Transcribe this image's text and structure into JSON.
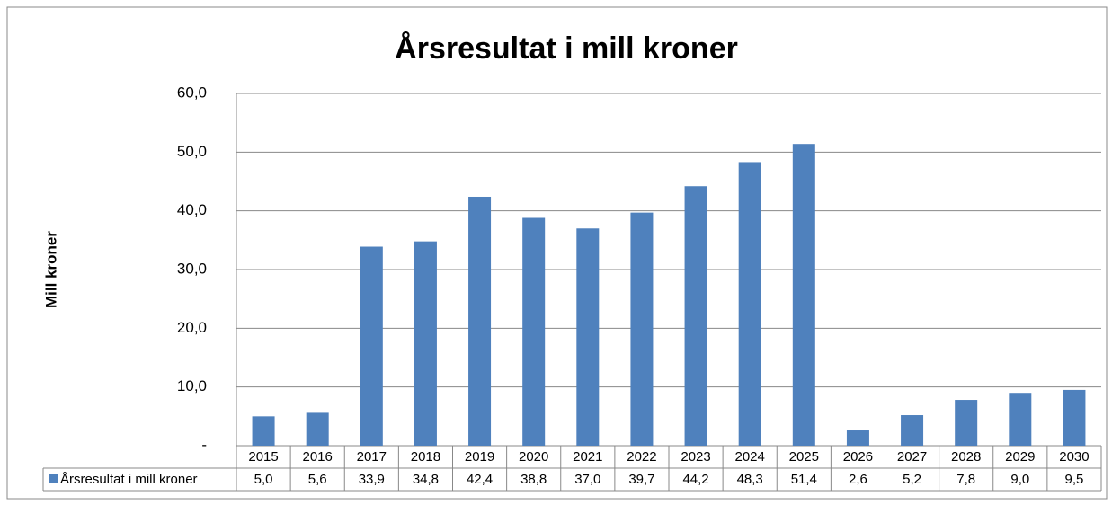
{
  "chart_data": {
    "type": "bar",
    "title": "Årsresultat i mill kroner",
    "y_label": "Mill kroner",
    "categories": [
      "2015",
      "2016",
      "2017",
      "2018",
      "2019",
      "2020",
      "2021",
      "2022",
      "2023",
      "2024",
      "2025",
      "2026",
      "2027",
      "2028",
      "2029",
      "2030"
    ],
    "series": [
      {
        "name": "Årsresultat i mill kroner",
        "color": "#4f81bd",
        "values": [
          5.0,
          5.6,
          33.9,
          34.8,
          42.4,
          38.8,
          37.0,
          39.7,
          44.2,
          48.3,
          51.4,
          2.6,
          5.2,
          7.8,
          9.0,
          9.5
        ],
        "value_labels": [
          "5,0",
          "5,6",
          "33,9",
          "34,8",
          "42,4",
          "38,8",
          "37,0",
          "39,7",
          "44,2",
          "48,3",
          "51,4",
          "2,6",
          "5,2",
          "7,8",
          "9,0",
          "9,5"
        ]
      }
    ],
    "ylim": [
      0,
      60
    ],
    "yticks": [
      {
        "value": 0,
        "label": "-"
      },
      {
        "value": 10,
        "label": "10,0"
      },
      {
        "value": 20,
        "label": "20,0"
      },
      {
        "value": 30,
        "label": "30,0"
      },
      {
        "value": 40,
        "label": "40,0"
      },
      {
        "value": 50,
        "label": "50,0"
      },
      {
        "value": 60,
        "label": "60,0"
      }
    ],
    "grid": true
  }
}
